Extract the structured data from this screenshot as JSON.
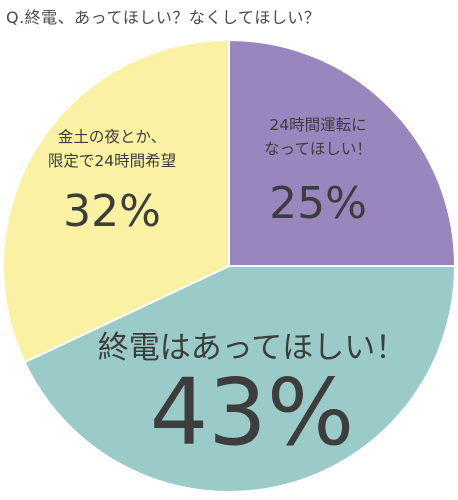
{
  "title": "Q.終電、あってほしい？なくしてほしい？",
  "colors": {
    "purple": "#9a86bf",
    "teal": "#9acbc8",
    "yellow": "#faf2a2",
    "text": "#3d3d3d"
  },
  "chart_data": {
    "type": "pie",
    "title": "Q.終電、あってほしい？なくしてほしい？",
    "slices": [
      {
        "label_lines": [
          "24時間運転に",
          "なってほしい！"
        ],
        "value": 25,
        "value_label": "25%",
        "color": "#9a86bf"
      },
      {
        "label_lines": [
          "終電はあってほしい！"
        ],
        "value": 43,
        "value_label": "43%",
        "color": "#9acbc8"
      },
      {
        "label_lines": [
          "金土の夜とか、",
          "限定で24時間希望"
        ],
        "value": 32,
        "value_label": "32%",
        "color": "#faf2a2"
      }
    ],
    "start_angle": "12 o'clock",
    "direction": "clockwise",
    "legend": "none (labels inside slices)"
  }
}
